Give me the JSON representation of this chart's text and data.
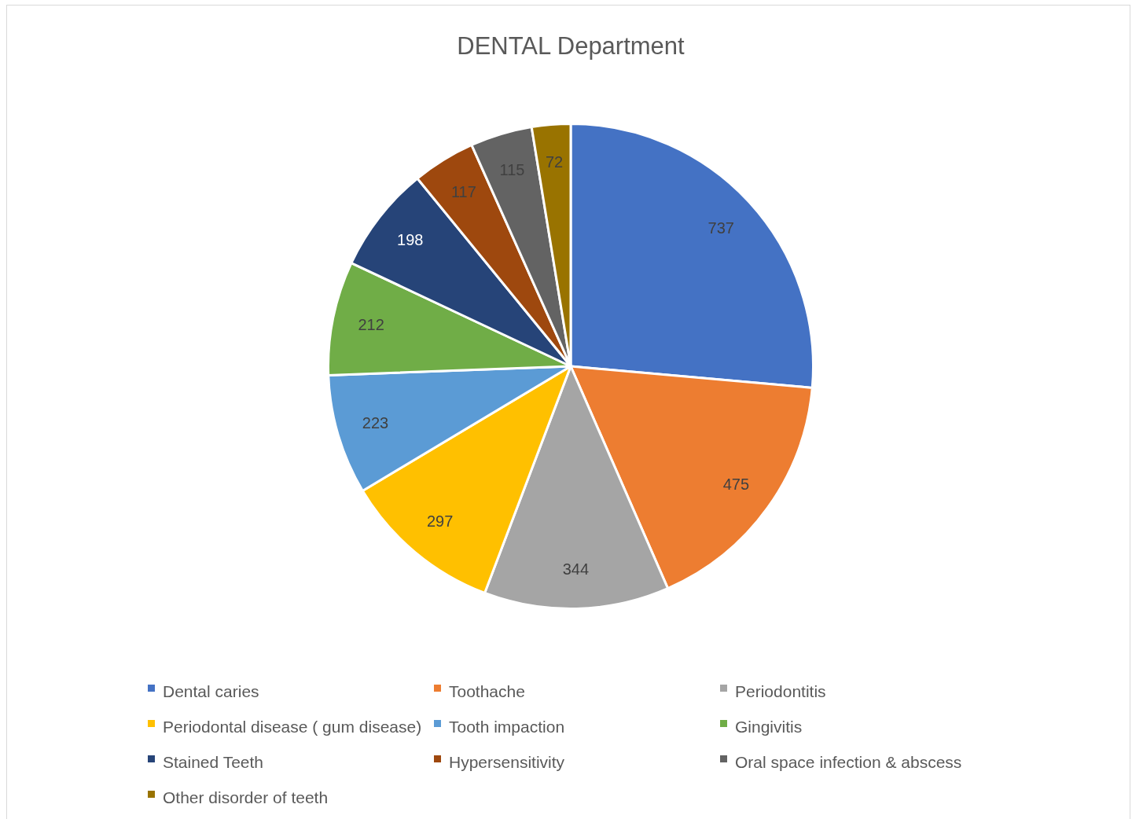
{
  "chart_data": {
    "type": "pie",
    "title": "DENTAL Department",
    "categories": [
      "Dental caries",
      "Toothache",
      "Periodontitis",
      "Periodontal disease ( gum disease)",
      "Tooth impaction",
      "Gingivitis",
      "Stained Teeth",
      "Hypersensitivity",
      "Oral space infection & abscess",
      "Other disorder of teeth"
    ],
    "values": [
      737,
      475,
      344,
      297,
      223,
      212,
      198,
      117,
      115,
      72
    ],
    "colors": [
      "#4472c4",
      "#ed7d31",
      "#a5a5a5",
      "#ffc000",
      "#5b9bd5",
      "#70ad47",
      "#264478",
      "#9e480e",
      "#636363",
      "#997300"
    ],
    "data_labels": true,
    "legend": "bottom"
  }
}
